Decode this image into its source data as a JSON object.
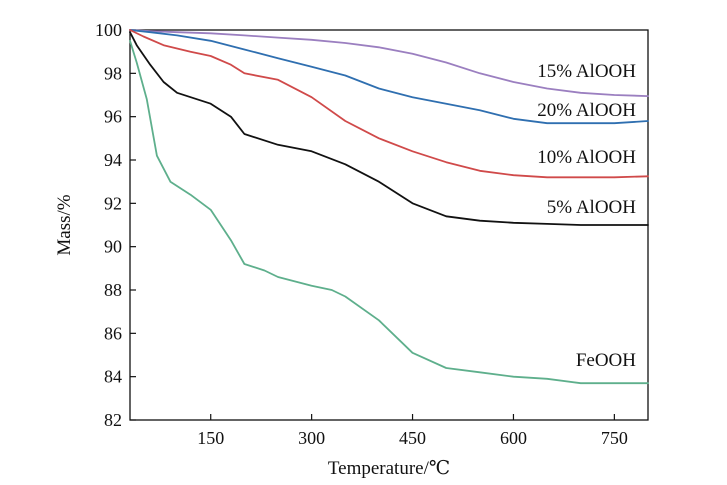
{
  "chart_data": {
    "type": "line",
    "xlabel": "Temperature/℃",
    "ylabel": "Mass/%",
    "xlim": [
      30,
      800
    ],
    "ylim": [
      82,
      100
    ],
    "x_ticks": [
      150,
      300,
      450,
      600,
      750
    ],
    "y_ticks": [
      82,
      84,
      86,
      88,
      90,
      92,
      94,
      96,
      98,
      100
    ],
    "grid": false,
    "legend": "inline labels at right end of each curve",
    "series": [
      {
        "name": "15% AlOOH",
        "color": "#9b7fc0",
        "x": [
          30,
          60,
          100,
          150,
          200,
          250,
          300,
          350,
          400,
          450,
          500,
          550,
          600,
          650,
          700,
          750,
          800
        ],
        "y": [
          100,
          99.95,
          99.9,
          99.85,
          99.75,
          99.65,
          99.55,
          99.4,
          99.2,
          98.9,
          98.5,
          98.0,
          97.6,
          97.3,
          97.1,
          97.0,
          96.95
        ]
      },
      {
        "name": "20% AlOOH",
        "color": "#2f6fb0",
        "x": [
          30,
          60,
          100,
          150,
          200,
          250,
          300,
          350,
          400,
          450,
          500,
          550,
          600,
          650,
          700,
          750,
          800
        ],
        "y": [
          100,
          99.9,
          99.75,
          99.5,
          99.1,
          98.7,
          98.3,
          97.9,
          97.3,
          96.9,
          96.6,
          96.3,
          95.9,
          95.7,
          95.7,
          95.7,
          95.8
        ]
      },
      {
        "name": "10% AlOOH",
        "color": "#d04a4a",
        "x": [
          30,
          50,
          80,
          120,
          150,
          180,
          200,
          250,
          300,
          350,
          400,
          450,
          500,
          550,
          600,
          650,
          700,
          750,
          800
        ],
        "y": [
          100,
          99.7,
          99.3,
          99.0,
          98.8,
          98.4,
          98.0,
          97.7,
          96.9,
          95.8,
          95.0,
          94.4,
          93.9,
          93.5,
          93.3,
          93.2,
          93.2,
          93.2,
          93.25
        ]
      },
      {
        "name": "5% AlOOH",
        "color": "#111111",
        "x": [
          30,
          40,
          60,
          80,
          100,
          150,
          180,
          200,
          250,
          300,
          350,
          400,
          450,
          500,
          550,
          600,
          650,
          700,
          750,
          800
        ],
        "y": [
          99.9,
          99.3,
          98.4,
          97.6,
          97.1,
          96.6,
          96.0,
          95.2,
          94.7,
          94.4,
          93.8,
          93.0,
          92.0,
          91.4,
          91.2,
          91.1,
          91.05,
          91.0,
          91.0,
          91.0
        ]
      },
      {
        "name": "FeOOH",
        "color": "#5eaf8c",
        "x": [
          30,
          40,
          55,
          70,
          90,
          120,
          150,
          180,
          200,
          230,
          250,
          300,
          330,
          350,
          400,
          450,
          500,
          550,
          600,
          650,
          700,
          750,
          800
        ],
        "y": [
          99.5,
          98.5,
          96.8,
          94.2,
          93.0,
          92.4,
          91.7,
          90.3,
          89.2,
          88.9,
          88.6,
          88.2,
          88.0,
          87.7,
          86.6,
          85.1,
          84.4,
          84.2,
          84.0,
          83.9,
          83.7,
          83.7,
          83.7
        ]
      }
    ]
  }
}
